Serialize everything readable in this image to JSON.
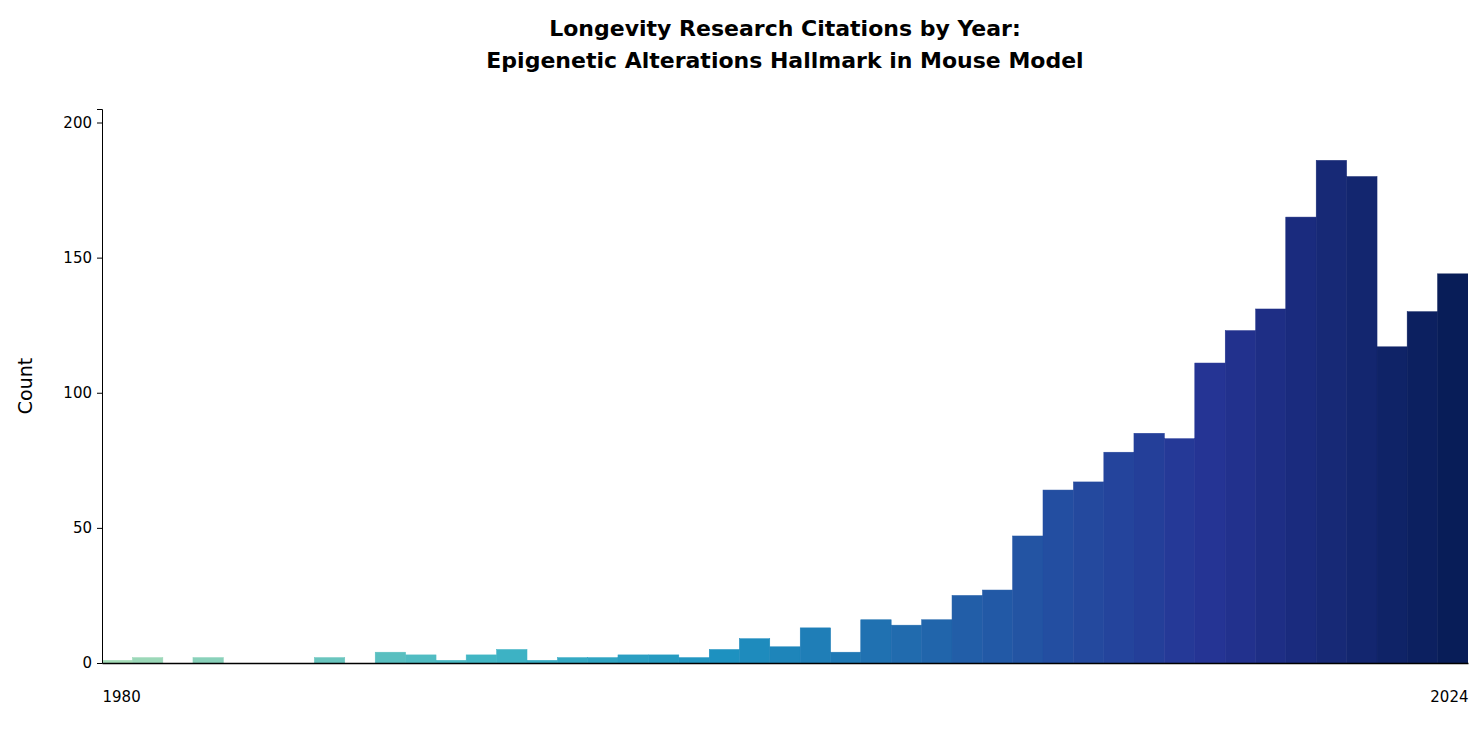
{
  "chart_data": {
    "type": "histogram",
    "title": "Longevity Research Citations by Year:\nEpigenetic Alterations Hallmark in Mouse Model",
    "y_label": "Count",
    "bins": [
      1980,
      1980.98,
      1981.96,
      1982.93,
      1983.91,
      1984.89,
      1985.87,
      1986.84,
      1987.82,
      1988.8,
      1989.78,
      1990.76,
      1991.73,
      1992.71,
      1993.69,
      1994.67,
      1995.64,
      1996.62,
      1997.6,
      1998.58,
      1999.56,
      2000.53,
      2001.51,
      2002.49,
      2003.47,
      2004.44,
      2005.42,
      2006.4,
      2007.38,
      2008.36,
      2009.33,
      2010.31,
      2011.29,
      2012.27,
      2013.24,
      2014.22,
      2015.2,
      2016.18,
      2017.16,
      2018.13,
      2019.11,
      2020.09,
      2021.07,
      2022.04,
      2023.02,
      2024
    ],
    "values": [
      1,
      2,
      0,
      2,
      0,
      0,
      0,
      2,
      0,
      4,
      3,
      1,
      3,
      5,
      1,
      2,
      2,
      3,
      3,
      2,
      5,
      9,
      6,
      13,
      4,
      16,
      14,
      16,
      25,
      27,
      47,
      64,
      67,
      78,
      85,
      83,
      111,
      123,
      131,
      165,
      186,
      180,
      117,
      130,
      144
    ],
    "colors": [
      "#a4dcb7",
      "#9bd8b8",
      "#92d4b9",
      "#89d1ba",
      "#80cdbb",
      "#79cbbc",
      "#71c8bd",
      "#69c5be",
      "#61c2bf",
      "#59bfc0",
      "#51bcc2",
      "#4ab9c3",
      "#42b6c4",
      "#3db2c4",
      "#38adc3",
      "#34a9c3",
      "#2fa4c2",
      "#2b9fc2",
      "#269bc1",
      "#2296c1",
      "#1d91c0",
      "#1e8bbd",
      "#1e85ba",
      "#1f7eb7",
      "#1f78b4",
      "#2071b1",
      "#216bae",
      "#2165ab",
      "#225ea8",
      "#2259a6",
      "#2354a3",
      "#234ea1",
      "#24499e",
      "#24449c",
      "#243f99",
      "#253997",
      "#253494",
      "#22318d",
      "#1e2e85",
      "#1a2b7e",
      "#172976",
      "#13266f",
      "#0f2367",
      "#0c2060",
      "#081d58"
    ],
    "xlim": [
      1980,
      2024
    ],
    "ylim": [
      0,
      205
    ],
    "xticks": [
      1980,
      2024
    ],
    "yticks": [
      0,
      50,
      100,
      150,
      200
    ],
    "grid": false
  }
}
